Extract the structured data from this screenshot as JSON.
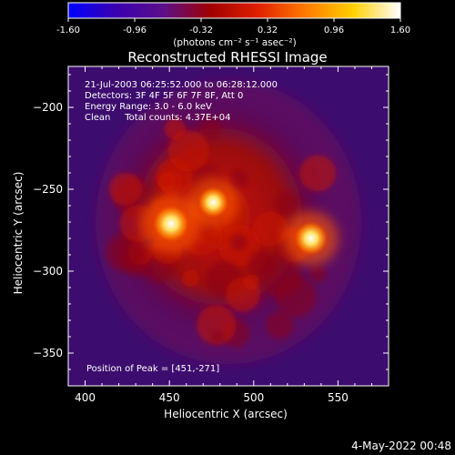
{
  "chart_data": {
    "type": "heatmap",
    "title": "Reconstructed RHESSI Image",
    "xlabel": "Heliocentric X (arcsec)",
    "ylabel": "Heliocentric Y (arcsec)",
    "xlim": [
      390,
      580
    ],
    "ylim": [
      -370,
      -175
    ],
    "x_ticks": [
      400,
      450,
      500,
      550
    ],
    "y_ticks": [
      -200,
      -250,
      -300,
      -350
    ],
    "colorbar": {
      "range": [
        -1.6,
        1.6
      ],
      "ticks": [
        "-1.60",
        "-0.96",
        "-0.32",
        "0.32",
        "0.96",
        "1.60"
      ],
      "unit_label": "(photons cm⁻² s⁻¹ asec⁻²)",
      "colors": [
        "#0000ff",
        "#3a00b0",
        "#5c0f8a",
        "#a00000",
        "#e02000",
        "#ff7a00",
        "#ffd000",
        "#ffffff"
      ]
    },
    "annotations": [
      "21-Jul-2003 06:25:52.000 to 06:28:12.000",
      "Detectors: 3F 4F 5F 6F 7F 8F, Att 0",
      "Energy Range: 3.0 - 6.0 keV",
      "Clean     Total counts: 4.37E+04"
    ],
    "peak_label": "Position of Peak = [451,-271]",
    "sources": [
      {
        "x": 451,
        "y": -271,
        "intensity": 1.6
      },
      {
        "x": 476,
        "y": -258,
        "intensity": 1.35
      },
      {
        "x": 534,
        "y": -280,
        "intensity": 1.45
      }
    ],
    "emission_extent": {
      "x": [
        410,
        560
      ],
      "y": [
        -355,
        -185
      ]
    }
  },
  "footer_date": "4-May-2022 00:48"
}
